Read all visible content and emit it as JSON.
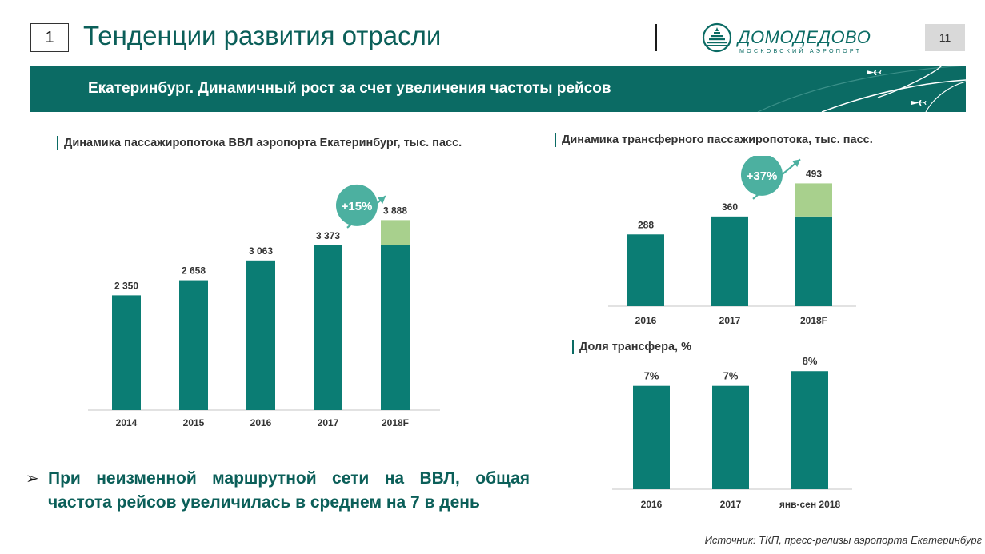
{
  "header": {
    "section_number": "1",
    "title": "Тенденции развития отрасли",
    "page_number": "11",
    "logo": {
      "name": "ДОМОДЕДОВО",
      "tagline": "МОСКОВСКИЙ АЭРОПОРТ"
    }
  },
  "banner": {
    "text": "Екатеринбург. Динамичный рост за счет увеличения частоты рейсов"
  },
  "colors": {
    "bar": "#0b7d74",
    "forecast_increment": "#a8d08d",
    "growth_badge": "#4cb0a0",
    "banner": "#0b6b64"
  },
  "charts": {
    "domestic": {
      "title": "Динамика пассажиропотока ВВЛ аэропорта Екатеринбург, тыс. пасс.",
      "growth_label": "+15%"
    },
    "transfer": {
      "title": "Динамика трансферного пассажиропотока, тыс. пасс.",
      "growth_label": "+37%"
    },
    "share": {
      "title": "Доля трансфера, %"
    }
  },
  "chart_data": [
    {
      "type": "bar",
      "title": "Динамика пассажиропотока ВВЛ аэропорта Екатеринбург, тыс. пасс.",
      "categories": [
        "2014",
        "2015",
        "2016",
        "2017",
        "2018F"
      ],
      "values": [
        2350,
        2658,
        3063,
        3373,
        3888
      ],
      "value_labels": [
        "2 350",
        "2 658",
        "3 063",
        "3 373",
        "3 888"
      ],
      "base_values": [
        2350,
        2658,
        3063,
        3373,
        3373
      ],
      "increment_values": [
        0,
        0,
        0,
        0,
        515
      ],
      "ylim": [
        0,
        4500
      ],
      "annotation": "+15%"
    },
    {
      "type": "bar",
      "title": "Динамика трансферного пассажиропотока, тыс. пасс.",
      "categories": [
        "2016",
        "2017",
        "2018F"
      ],
      "values": [
        288,
        360,
        493
      ],
      "value_labels": [
        "288",
        "360",
        "493"
      ],
      "base_values": [
        288,
        360,
        360
      ],
      "increment_values": [
        0,
        0,
        133
      ],
      "ylim": [
        0,
        520
      ],
      "annotation": "+37%"
    },
    {
      "type": "bar",
      "title": "Доля трансфера, %",
      "categories": [
        "2016",
        "2017",
        "янв-сен 2018"
      ],
      "values": [
        7,
        7,
        8
      ],
      "value_labels": [
        "7%",
        "7%",
        "8%"
      ],
      "ylim": [
        0,
        8.5
      ]
    }
  ],
  "bullet": {
    "text": "При неизменной маршрутной сети на ВВЛ, общая частота рейсов увеличилась в среднем на 7 в день"
  },
  "source": "Источник: ТКП, пресс-релизы аэропорта Екатеринбург"
}
